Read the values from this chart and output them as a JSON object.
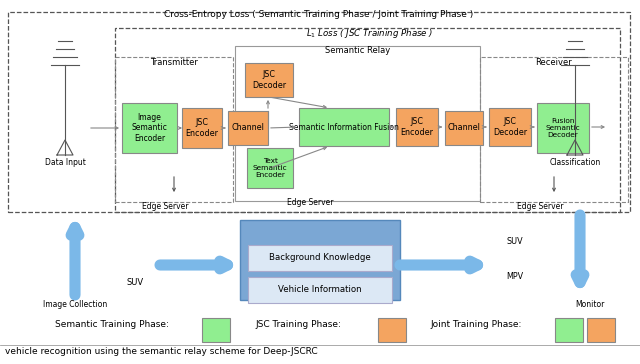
{
  "title": "Cross-Entropy Loss ( Semantic Training Phase / Joint Training Phase )",
  "l1_loss_label": "$L_1$ Loss ( JSC Training Phase )",
  "semantic_relay_label": "Semantic Relay",
  "transmitter_label": "Transmitter",
  "receiver_label": "Receiver",
  "edge_server_label1": "Edge Server",
  "edge_server_label2": "Edge Server",
  "edge_server_label3": "Edge Server",
  "data_input_label": "Data Input",
  "classification_label": "Classification",
  "image_collection_label": "Image Collection",
  "suv_label": "SUV",
  "mpv_label": "MPV",
  "monitor_label": "Monitor",
  "bg_knowledge_label": "Background Knowledge",
  "vehicle_info_label": "Vehicle Information",
  "green_color": "#90EE90",
  "orange_color": "#F4A460",
  "light_blue_bg": "#7BA7D4",
  "inner_box_bg": "#DCE8F5",
  "bottom_text": "vehicle recognition using the semantic relay scheme for Deep-JSCRC"
}
